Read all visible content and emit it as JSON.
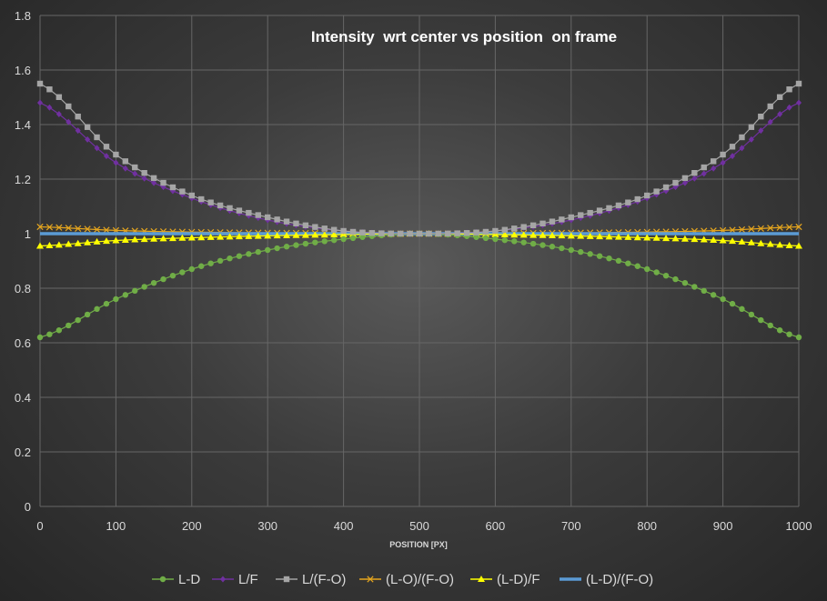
{
  "chart_data": {
    "type": "line",
    "title": "Intensity  wrt center vs position  on frame",
    "xlabel": "POSITION [PX]",
    "ylabel": "",
    "xlim": [
      0,
      1000
    ],
    "ylim": [
      0,
      1.8
    ],
    "x_ticks": [
      "0",
      "100",
      "200",
      "300",
      "400",
      "500",
      "600",
      "700",
      "800",
      "900",
      "1000"
    ],
    "y_ticks": [
      "0",
      "0.2",
      "0.4",
      "0.6",
      "0.8",
      "1",
      "1.2",
      "1.4",
      "1.6",
      "1.8"
    ],
    "grid": true,
    "legend_position": "bottom",
    "x": [
      0,
      100,
      200,
      300,
      400,
      500,
      600,
      700,
      800,
      900,
      1000
    ],
    "series": [
      {
        "name": "L-D",
        "color": "#70ad47",
        "marker": "circle",
        "values": [
          0.62,
          0.76,
          0.87,
          0.94,
          0.98,
          1.0,
          0.98,
          0.94,
          0.87,
          0.76,
          0.62
        ]
      },
      {
        "name": "L/F",
        "color": "#7030a0",
        "marker": "diamond",
        "values": [
          1.48,
          1.26,
          1.13,
          1.05,
          1.01,
          1.0,
          1.01,
          1.05,
          1.13,
          1.26,
          1.48
        ]
      },
      {
        "name": "L/(F-O)",
        "color": "#a5a5a5",
        "marker": "square",
        "values": [
          1.55,
          1.29,
          1.14,
          1.06,
          1.01,
          1.0,
          1.01,
          1.06,
          1.14,
          1.29,
          1.55
        ]
      },
      {
        "name": "(L-O)/(F-O)",
        "color": "#e6a61e",
        "marker": "x",
        "values": [
          1.025,
          1.012,
          1.006,
          1.003,
          1.001,
          1.0,
          1.001,
          1.003,
          1.006,
          1.012,
          1.025
        ]
      },
      {
        "name": "(L-D)/F",
        "color": "#ffff00",
        "marker": "triangle",
        "values": [
          0.955,
          0.975,
          0.985,
          0.992,
          0.997,
          1.0,
          0.997,
          0.992,
          0.985,
          0.975,
          0.955
        ]
      },
      {
        "name": "(L-D)/(F-O)",
        "color": "#5b9bd5",
        "marker": "none",
        "values": [
          1.0,
          1.0,
          1.0,
          1.0,
          1.0,
          1.0,
          1.0,
          1.0,
          1.0,
          1.0,
          1.0
        ]
      }
    ]
  }
}
